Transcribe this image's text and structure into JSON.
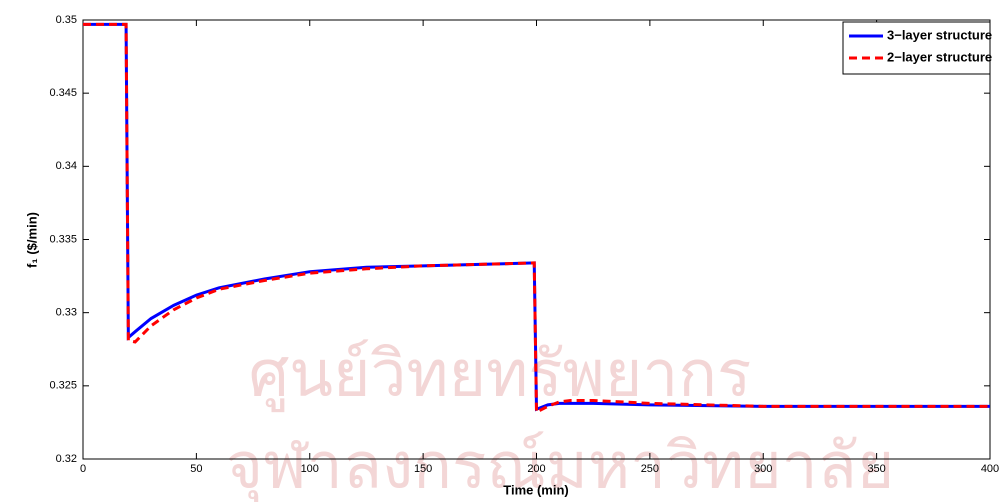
{
  "chart_data": {
    "type": "line",
    "xlabel": "Time (min)",
    "ylabel": "f₁ ($/min)",
    "watermark": [
      "ศูนย์วิทยทรัพยากร",
      "จุฬาลงกรณ์มหาวิทยาลัย"
    ],
    "x": [
      0,
      19,
      20,
      23,
      30,
      40,
      50,
      60,
      80,
      100,
      125,
      150,
      175,
      199,
      200,
      205,
      210,
      215,
      225,
      250,
      300,
      400
    ],
    "series": [
      {
        "name": "3−layer structure",
        "color": "#0000ff",
        "dash": false,
        "values": [
          0.3497,
          0.3497,
          0.3283,
          0.3287,
          0.3296,
          0.3305,
          0.3312,
          0.3317,
          0.3323,
          0.3328,
          0.3331,
          0.3332,
          0.3333,
          0.3334,
          0.3234,
          0.3237,
          0.3238,
          0.3238,
          0.3238,
          0.3237,
          0.3236,
          0.3236
        ]
      },
      {
        "name": "2−layer structure",
        "color": "#ff0000",
        "dash": true,
        "values": [
          0.3497,
          0.3497,
          0.3281,
          0.328,
          0.3291,
          0.3302,
          0.331,
          0.3316,
          0.3322,
          0.3327,
          0.333,
          0.3332,
          0.3333,
          0.3334,
          0.3232,
          0.3236,
          0.3239,
          0.324,
          0.324,
          0.3238,
          0.3236,
          0.3236
        ]
      }
    ],
    "xlim": [
      0,
      400
    ],
    "xticks": [
      0,
      50,
      100,
      150,
      200,
      250,
      300,
      350,
      400
    ],
    "ylim": [
      0.32,
      0.35
    ],
    "yticks": [
      0.32,
      0.325,
      0.33,
      0.335,
      0.34,
      0.345,
      0.35
    ],
    "grid": false,
    "legend": "upper right"
  }
}
